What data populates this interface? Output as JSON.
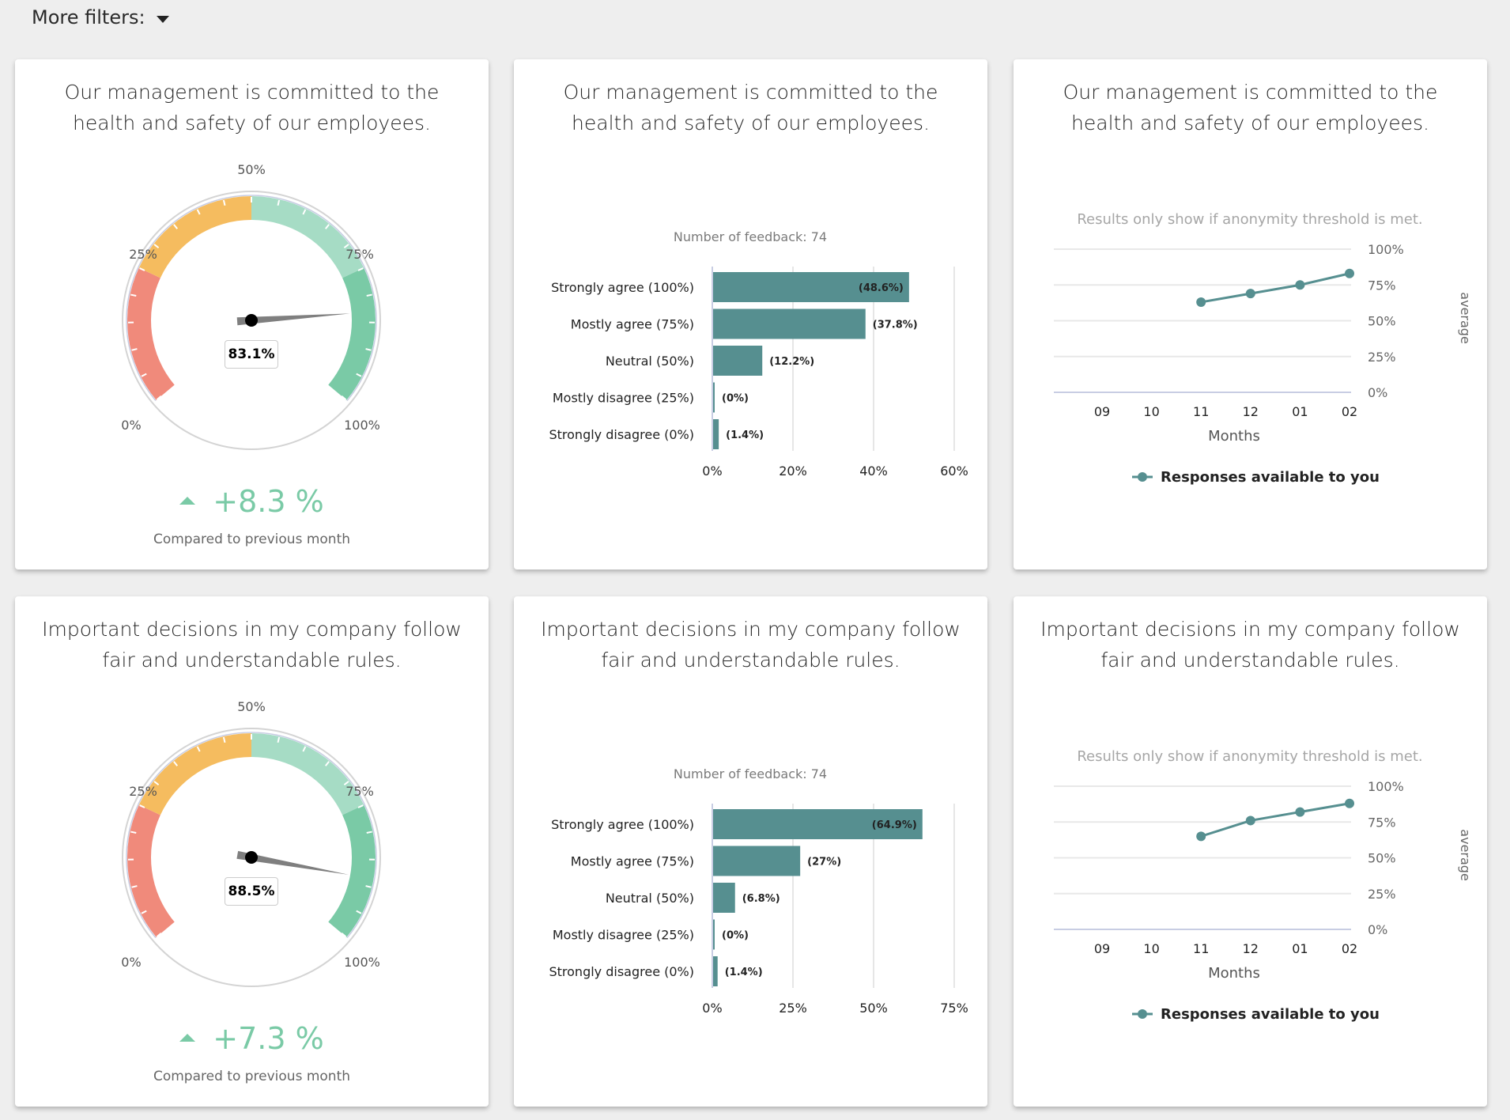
{
  "filters": {
    "label": "More filters:"
  },
  "colors": {
    "teal": "#568f90",
    "red": "#f08a7b",
    "orange": "#f5bc5f",
    "lightgreen": "#a6dcc5",
    "green": "#7acaa6",
    "delta": "#7acaa6"
  },
  "rows": [
    {
      "question": "Our management is committed to the health and safety of our employees.",
      "gauge": {
        "value_label": "83.1%",
        "labels": [
          "0%",
          "25%",
          "50%",
          "75%",
          "100%"
        ],
        "delta": "+8.3 %",
        "delta_caption": "Compared to previous month"
      },
      "bars": {
        "subtitle": "Number of feedback: 74",
        "x_ticks": [
          "0%",
          "20%",
          "40%",
          "60%"
        ]
      },
      "line": {
        "notice": "Results only show if anonymity threshold is met.",
        "y_ticks": [
          "100%",
          "75%",
          "50%",
          "25%",
          "0%"
        ],
        "x_ticks": [
          "09",
          "10",
          "11",
          "12",
          "01",
          "02"
        ],
        "x_label": "Months",
        "y_label": "average",
        "legend": "Responses available to you"
      }
    },
    {
      "question": "Important decisions in my company follow fair and understandable rules.",
      "gauge": {
        "value_label": "88.5%",
        "labels": [
          "0%",
          "25%",
          "50%",
          "75%",
          "100%"
        ],
        "delta": "+7.3 %",
        "delta_caption": "Compared to previous month"
      },
      "bars": {
        "subtitle": "Number of feedback: 74",
        "x_ticks": [
          "0%",
          "25%",
          "50%",
          "75%"
        ]
      },
      "line": {
        "notice": "Results only show if anonymity threshold is met.",
        "y_ticks": [
          "100%",
          "75%",
          "50%",
          "25%",
          "0%"
        ],
        "x_ticks": [
          "09",
          "10",
          "11",
          "12",
          "01",
          "02"
        ],
        "x_label": "Months",
        "y_label": "average",
        "legend": "Responses available to you"
      }
    }
  ],
  "chart_data": [
    {
      "type": "gauge",
      "title": "Our management is committed to the health and safety of our employees.",
      "value": 83.1,
      "range": [
        0,
        100
      ],
      "bands": [
        {
          "from": 0,
          "to": 25,
          "color": "#f08a7b"
        },
        {
          "from": 25,
          "to": 50,
          "color": "#f5bc5f"
        },
        {
          "from": 50,
          "to": 75,
          "color": "#a6dcc5"
        },
        {
          "from": 75,
          "to": 100,
          "color": "#7acaa6"
        }
      ],
      "tick_labels": [
        "0%",
        "25%",
        "50%",
        "75%",
        "100%"
      ],
      "delta_vs_previous_month": 8.3
    },
    {
      "type": "bar",
      "orientation": "horizontal",
      "title": "Our management is committed to the health and safety of our employees.",
      "subtitle": "Number of feedback: 74",
      "categories": [
        "Strongly agree (100%)",
        "Mostly agree (75%)",
        "Neutral (50%)",
        "Mostly disagree (25%)",
        "Strongly disagree (0%)"
      ],
      "values": [
        48.6,
        37.8,
        12.2,
        0,
        1.4
      ],
      "data_labels": [
        "(48.6%)",
        "(37.8%)",
        "(12.2%)",
        "(0%)",
        "(1.4%)"
      ],
      "xlim": [
        0,
        60
      ],
      "x_ticks": [
        "0%",
        "20%",
        "40%",
        "60%"
      ],
      "grid": true
    },
    {
      "type": "line",
      "title": "Our management is committed to the health and safety of our employees.",
      "subtitle": "Results only show if anonymity threshold is met.",
      "x": [
        "09",
        "10",
        "11",
        "12",
        "01",
        "02"
      ],
      "series": [
        {
          "name": "Responses available to you",
          "values": [
            null,
            null,
            63,
            69,
            75,
            83
          ]
        }
      ],
      "xlabel": "Months",
      "ylabel": "average",
      "ylim": [
        0,
        100
      ],
      "y_ticks": [
        "0%",
        "25%",
        "50%",
        "75%",
        "100%"
      ],
      "legend": "bottom",
      "grid": true
    },
    {
      "type": "gauge",
      "title": "Important decisions in my company follow fair and understandable rules.",
      "value": 88.5,
      "range": [
        0,
        100
      ],
      "bands": [
        {
          "from": 0,
          "to": 25,
          "color": "#f08a7b"
        },
        {
          "from": 25,
          "to": 50,
          "color": "#f5bc5f"
        },
        {
          "from": 50,
          "to": 75,
          "color": "#a6dcc5"
        },
        {
          "from": 75,
          "to": 100,
          "color": "#7acaa6"
        }
      ],
      "tick_labels": [
        "0%",
        "25%",
        "50%",
        "75%",
        "100%"
      ],
      "delta_vs_previous_month": 7.3
    },
    {
      "type": "bar",
      "orientation": "horizontal",
      "title": "Important decisions in my company follow fair and understandable rules.",
      "subtitle": "Number of feedback: 74",
      "categories": [
        "Strongly agree (100%)",
        "Mostly agree (75%)",
        "Neutral (50%)",
        "Mostly disagree (25%)",
        "Strongly disagree (0%)"
      ],
      "values": [
        64.9,
        27,
        6.8,
        0,
        1.4
      ],
      "data_labels": [
        "(64.9%)",
        "(27%)",
        "(6.8%)",
        "(0%)",
        "(1.4%)"
      ],
      "xlim": [
        0,
        75
      ],
      "x_ticks": [
        "0%",
        "25%",
        "50%",
        "75%"
      ],
      "grid": true
    },
    {
      "type": "line",
      "title": "Important decisions in my company follow fair and understandable rules.",
      "subtitle": "Results only show if anonymity threshold is met.",
      "x": [
        "09",
        "10",
        "11",
        "12",
        "01",
        "02"
      ],
      "series": [
        {
          "name": "Responses available to you",
          "values": [
            null,
            null,
            65,
            76,
            82,
            88
          ]
        }
      ],
      "xlabel": "Months",
      "ylabel": "average",
      "ylim": [
        0,
        100
      ],
      "y_ticks": [
        "0%",
        "25%",
        "50%",
        "75%",
        "100%"
      ],
      "legend": "bottom",
      "grid": true
    }
  ]
}
